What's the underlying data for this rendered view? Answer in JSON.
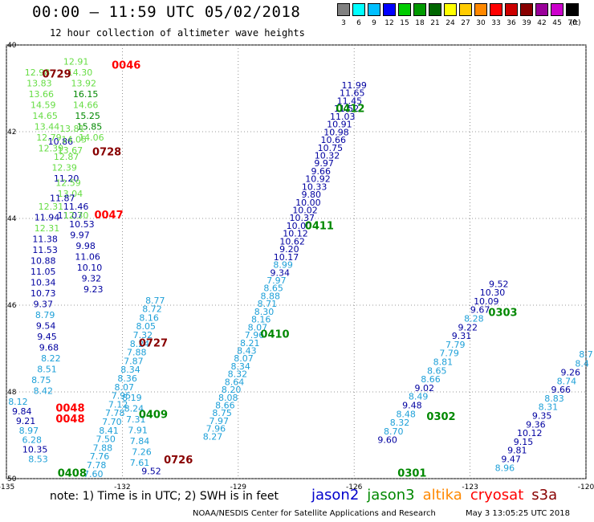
{
  "header": {
    "title": "00:00 – 11:59 UTC 05/02/2018",
    "subtitle": "12 hour collection of altimeter wave heights"
  },
  "color_scale": {
    "unit": "(ft)",
    "bins": [
      {
        "label": "3",
        "color": "#808080"
      },
      {
        "label": "6",
        "color": "#00ffff"
      },
      {
        "label": "9",
        "color": "#00bfff"
      },
      {
        "label": "12",
        "color": "#0000ff"
      },
      {
        "label": "15",
        "color": "#00cc00"
      },
      {
        "label": "18",
        "color": "#009900"
      },
      {
        "label": "21",
        "color": "#006600"
      },
      {
        "label": "24",
        "color": "#ffff00"
      },
      {
        "label": "27",
        "color": "#ffcc00"
      },
      {
        "label": "30",
        "color": "#ff8800"
      },
      {
        "label": "33",
        "color": "#ff0000"
      },
      {
        "label": "36",
        "color": "#cc0000"
      },
      {
        "label": "39",
        "color": "#880000"
      },
      {
        "label": "42",
        "color": "#990099"
      },
      {
        "label": "45",
        "color": "#cc00cc"
      },
      {
        "label": "70",
        "color": "#000000"
      }
    ]
  },
  "chart_data": {
    "type": "scatter",
    "title": "00:00 – 11:59 UTC 05/02/2018",
    "subtitle": "12 hour collection of altimeter wave heights",
    "xlim": [
      -135,
      -120
    ],
    "ylim": [
      50,
      40
    ],
    "x_ticks": [
      {
        "value": -135,
        "label": "-135"
      },
      {
        "value": -132,
        "label": "-132"
      },
      {
        "value": -129,
        "label": "-129"
      },
      {
        "value": -126,
        "label": "-126"
      },
      {
        "value": -123,
        "label": "-123"
      },
      {
        "value": -120,
        "label": "-120"
      }
    ],
    "y_ticks": [
      {
        "value": 40,
        "label": "40"
      },
      {
        "value": 42,
        "label": "42"
      },
      {
        "value": 44,
        "label": "44"
      },
      {
        "value": 46,
        "label": "46"
      },
      {
        "value": 48,
        "label": "48"
      },
      {
        "value": 50,
        "label": "50"
      }
    ],
    "grid": "dotted",
    "series": [
      {
        "name": "jason2",
        "color": "#00008b"
      },
      {
        "name": "jason3",
        "color": "#008000"
      },
      {
        "name": "altika",
        "color": "#ff8c00"
      },
      {
        "name": "cryosat",
        "color": "#cc0000"
      },
      {
        "name": "s3a",
        "color": "#7a0000"
      }
    ],
    "color_by_height": [
      {
        "max": 9,
        "color": "#1ea0d8"
      },
      {
        "max": 12,
        "color": "#0000a0"
      },
      {
        "max": 15,
        "color": "#66dd44"
      },
      {
        "max": 18,
        "color": "#008800"
      }
    ],
    "points": [
      {
        "x": -126.0,
        "y": 41.0,
        "v": "11.99"
      },
      {
        "x": -126.05,
        "y": 41.18,
        "v": "11.65"
      },
      {
        "x": -126.12,
        "y": 41.36,
        "v": "11.45"
      },
      {
        "x": -126.2,
        "y": 41.54,
        "v": "11.52"
      },
      {
        "x": -126.3,
        "y": 41.72,
        "v": "11.03"
      },
      {
        "x": -126.38,
        "y": 41.9,
        "v": "10.91"
      },
      {
        "x": -126.46,
        "y": 42.08,
        "v": "10.98"
      },
      {
        "x": -126.54,
        "y": 42.26,
        "v": "10.66"
      },
      {
        "x": -126.62,
        "y": 42.44,
        "v": "10.75"
      },
      {
        "x": -126.7,
        "y": 42.62,
        "v": "10.32"
      },
      {
        "x": -126.78,
        "y": 42.8,
        "v": "9.97"
      },
      {
        "x": -126.86,
        "y": 42.98,
        "v": "9.66"
      },
      {
        "x": -126.94,
        "y": 43.16,
        "v": "10.92"
      },
      {
        "x": -127.03,
        "y": 43.34,
        "v": "10.33"
      },
      {
        "x": -127.11,
        "y": 43.52,
        "v": "9.80"
      },
      {
        "x": -127.19,
        "y": 43.7,
        "v": "10.00"
      },
      {
        "x": -127.27,
        "y": 43.88,
        "v": "10.02"
      },
      {
        "x": -127.35,
        "y": 44.06,
        "v": "10.37"
      },
      {
        "x": -127.43,
        "y": 44.24,
        "v": "10.00"
      },
      {
        "x": -127.52,
        "y": 44.42,
        "v": "10.12"
      },
      {
        "x": -127.6,
        "y": 44.6,
        "v": "10.62"
      },
      {
        "x": -127.68,
        "y": 44.78,
        "v": "9.20"
      },
      {
        "x": -127.76,
        "y": 44.96,
        "v": "10.17"
      },
      {
        "x": -127.84,
        "y": 45.14,
        "v": "8.99"
      },
      {
        "x": -127.92,
        "y": 45.32,
        "v": "9.34"
      },
      {
        "x": -128.01,
        "y": 45.5,
        "v": "7.97"
      },
      {
        "x": -128.09,
        "y": 45.68,
        "v": "8.65"
      },
      {
        "x": -128.17,
        "y": 45.86,
        "v": "8.88"
      },
      {
        "x": -128.25,
        "y": 46.04,
        "v": "8.71"
      },
      {
        "x": -128.33,
        "y": 46.22,
        "v": "8.30"
      },
      {
        "x": -128.41,
        "y": 46.4,
        "v": "8.16"
      },
      {
        "x": -128.5,
        "y": 46.58,
        "v": "8.07"
      },
      {
        "x": -128.58,
        "y": 46.76,
        "v": "7.96"
      },
      {
        "x": -128.7,
        "y": 46.94,
        "v": "8.21"
      },
      {
        "x": -128.78,
        "y": 47.12,
        "v": "8.43"
      },
      {
        "x": -128.86,
        "y": 47.3,
        "v": "8.07"
      },
      {
        "x": -128.94,
        "y": 47.48,
        "v": "8.34"
      },
      {
        "x": -129.02,
        "y": 47.66,
        "v": "8.32"
      },
      {
        "x": -129.1,
        "y": 47.84,
        "v": "8.64"
      },
      {
        "x": -129.18,
        "y": 48.02,
        "v": "8.20"
      },
      {
        "x": -129.26,
        "y": 48.2,
        "v": "8.08"
      },
      {
        "x": -129.34,
        "y": 48.38,
        "v": "8.66"
      },
      {
        "x": -129.42,
        "y": 48.56,
        "v": "8.75"
      },
      {
        "x": -129.5,
        "y": 48.74,
        "v": "7.97"
      },
      {
        "x": -129.58,
        "y": 48.92,
        "v": "7.96"
      },
      {
        "x": -129.66,
        "y": 49.1,
        "v": "8.27"
      },
      {
        "x": -131.15,
        "y": 45.96,
        "v": "8.77"
      },
      {
        "x": -131.23,
        "y": 46.16,
        "v": "8.72"
      },
      {
        "x": -131.31,
        "y": 46.36,
        "v": "8.16"
      },
      {
        "x": -131.39,
        "y": 46.56,
        "v": "8.05"
      },
      {
        "x": -131.47,
        "y": 46.76,
        "v": "7.32"
      },
      {
        "x": -131.55,
        "y": 46.96,
        "v": "8.24"
      },
      {
        "x": -131.63,
        "y": 47.16,
        "v": "7.88"
      },
      {
        "x": -131.71,
        "y": 47.36,
        "v": "7.87"
      },
      {
        "x": -131.79,
        "y": 47.56,
        "v": "8.34"
      },
      {
        "x": -131.87,
        "y": 47.76,
        "v": "8.36"
      },
      {
        "x": -131.95,
        "y": 47.96,
        "v": "8.07"
      },
      {
        "x": -132.03,
        "y": 48.16,
        "v": "7.95"
      },
      {
        "x": -132.11,
        "y": 48.36,
        "v": "7.12"
      },
      {
        "x": -132.19,
        "y": 48.56,
        "v": "7.78"
      },
      {
        "x": -132.27,
        "y": 48.76,
        "v": "7.70"
      },
      {
        "x": -132.35,
        "y": 48.96,
        "v": "8.41"
      },
      {
        "x": -132.43,
        "y": 49.16,
        "v": "7.50"
      },
      {
        "x": -132.51,
        "y": 49.36,
        "v": "7.88"
      },
      {
        "x": -132.59,
        "y": 49.56,
        "v": "7.76"
      },
      {
        "x": -132.67,
        "y": 49.76,
        "v": "7.78"
      },
      {
        "x": -132.75,
        "y": 49.96,
        "v": "7.60"
      },
      {
        "x": -131.25,
        "y": 49.9,
        "v": "9.52"
      },
      {
        "x": -131.55,
        "y": 49.7,
        "v": "7.61"
      },
      {
        "x": -131.5,
        "y": 49.45,
        "v": "7.26"
      },
      {
        "x": -131.55,
        "y": 49.2,
        "v": "7.84"
      },
      {
        "x": -131.6,
        "y": 48.95,
        "v": "7.91"
      },
      {
        "x": -131.65,
        "y": 48.7,
        "v": "7.31"
      },
      {
        "x": -131.7,
        "y": 48.45,
        "v": "8.24"
      },
      {
        "x": -131.75,
        "y": 48.2,
        "v": "8.19"
      },
      {
        "x": -134.7,
        "y": 48.3,
        "v": "8.12"
      },
      {
        "x": -134.6,
        "y": 48.52,
        "v": "9.84"
      },
      {
        "x": -134.5,
        "y": 48.74,
        "v": "9.21"
      },
      {
        "x": -134.42,
        "y": 48.96,
        "v": "8.97"
      },
      {
        "x": -134.34,
        "y": 49.18,
        "v": "6.28"
      },
      {
        "x": -134.26,
        "y": 49.4,
        "v": "10.35"
      },
      {
        "x": -134.18,
        "y": 49.62,
        "v": "8.53"
      },
      {
        "x": -134.1,
        "y": 47.8,
        "v": "8.75"
      },
      {
        "x": -134.05,
        "y": 48.05,
        "v": "8.42"
      },
      {
        "x": -133.95,
        "y": 47.55,
        "v": "8.51"
      },
      {
        "x": -133.85,
        "y": 47.3,
        "v": "8.22"
      },
      {
        "x": -133.9,
        "y": 47.05,
        "v": "9.68"
      },
      {
        "x": -133.95,
        "y": 46.8,
        "v": "9.45"
      },
      {
        "x": -133.98,
        "y": 46.55,
        "v": "9.54"
      },
      {
        "x": -134.0,
        "y": 46.3,
        "v": "8.79"
      },
      {
        "x": -134.05,
        "y": 46.05,
        "v": "9.37"
      },
      {
        "x": -134.05,
        "y": 45.8,
        "v": "10.73"
      },
      {
        "x": -134.05,
        "y": 45.55,
        "v": "10.34"
      },
      {
        "x": -134.05,
        "y": 45.3,
        "v": "11.05"
      },
      {
        "x": -134.05,
        "y": 45.05,
        "v": "10.88"
      },
      {
        "x": -134.0,
        "y": 44.8,
        "v": "11.53"
      },
      {
        "x": -134.0,
        "y": 44.55,
        "v": "11.38"
      },
      {
        "x": -133.95,
        "y": 44.3,
        "v": "12.31"
      },
      {
        "x": -133.95,
        "y": 44.05,
        "v": "11.94"
      },
      {
        "x": -133.85,
        "y": 43.8,
        "v": "12.31"
      },
      {
        "x": -133.05,
        "y": 44.2,
        "v": "10.53"
      },
      {
        "x": -133.1,
        "y": 44.45,
        "v": "9.97"
      },
      {
        "x": -132.95,
        "y": 44.7,
        "v": "9.98"
      },
      {
        "x": -132.9,
        "y": 44.95,
        "v": "11.06"
      },
      {
        "x": -132.85,
        "y": 45.2,
        "v": "10.10"
      },
      {
        "x": -132.8,
        "y": 45.45,
        "v": "9.32"
      },
      {
        "x": -132.75,
        "y": 45.7,
        "v": "9.23"
      },
      {
        "x": -133.6,
        "y": 42.3,
        "v": "10.86"
      },
      {
        "x": -133.45,
        "y": 43.15,
        "v": "11.20"
      },
      {
        "x": -133.2,
        "y": 43.8,
        "v": "11.46"
      },
      {
        "x": -133.35,
        "y": 44.0,
        "v": "11.07"
      },
      {
        "x": -134.2,
        "y": 40.7,
        "v": "12.98"
      },
      {
        "x": -134.15,
        "y": 40.95,
        "v": "13.83"
      },
      {
        "x": -134.1,
        "y": 41.2,
        "v": "13.66"
      },
      {
        "x": -134.05,
        "y": 41.45,
        "v": "14.59"
      },
      {
        "x": -134.0,
        "y": 41.7,
        "v": "14.65"
      },
      {
        "x": -133.95,
        "y": 41.95,
        "v": "13.44"
      },
      {
        "x": -133.9,
        "y": 42.2,
        "v": "12.79"
      },
      {
        "x": -133.85,
        "y": 42.45,
        "v": "12.39"
      },
      {
        "x": -133.45,
        "y": 42.65,
        "v": "12.87"
      },
      {
        "x": -133.5,
        "y": 42.9,
        "v": "12.39"
      },
      {
        "x": -133.35,
        "y": 43.5,
        "v": "13.04"
      },
      {
        "x": -133.55,
        "y": 43.6,
        "v": "11.87"
      },
      {
        "x": -133.2,
        "y": 44.0,
        "v": "12.30"
      },
      {
        "x": -133.4,
        "y": 43.25,
        "v": "12.59"
      },
      {
        "x": -133.3,
        "y": 42.0,
        "v": "13.81"
      },
      {
        "x": -133.25,
        "y": 42.25,
        "v": "14.05"
      },
      {
        "x": -133.35,
        "y": 42.5,
        "v": "13.67"
      },
      {
        "x": -133.2,
        "y": 40.45,
        "v": "12.91"
      },
      {
        "x": -133.1,
        "y": 40.7,
        "v": "14.30"
      },
      {
        "x": -133.0,
        "y": 40.95,
        "v": "13.92"
      },
      {
        "x": -132.95,
        "y": 41.2,
        "v": "16.15"
      },
      {
        "x": -132.95,
        "y": 41.45,
        "v": "14.66"
      },
      {
        "x": -132.9,
        "y": 41.7,
        "v": "15.25"
      },
      {
        "x": -132.85,
        "y": 41.95,
        "v": "15.85"
      },
      {
        "x": -132.8,
        "y": 42.2,
        "v": "14.06"
      },
      {
        "x": -120.0,
        "y": 47.2,
        "v": "8.7"
      },
      {
        "x": -120.1,
        "y": 47.42,
        "v": "8.4"
      },
      {
        "x": -120.4,
        "y": 47.62,
        "v": "9.26"
      },
      {
        "x": -120.5,
        "y": 47.82,
        "v": "8.74"
      },
      {
        "x": -120.65,
        "y": 48.02,
        "v": "9.66"
      },
      {
        "x": -120.82,
        "y": 48.22,
        "v": "8.83"
      },
      {
        "x": -120.98,
        "y": 48.42,
        "v": "8.31"
      },
      {
        "x": -121.14,
        "y": 48.62,
        "v": "9.35"
      },
      {
        "x": -121.3,
        "y": 48.82,
        "v": "9.36"
      },
      {
        "x": -121.46,
        "y": 49.02,
        "v": "10.12"
      },
      {
        "x": -121.62,
        "y": 49.22,
        "v": "9.15"
      },
      {
        "x": -121.78,
        "y": 49.42,
        "v": "9.81"
      },
      {
        "x": -121.94,
        "y": 49.62,
        "v": "9.47"
      },
      {
        "x": -122.1,
        "y": 49.82,
        "v": "8.96"
      },
      {
        "x": -122.26,
        "y": 45.58,
        "v": "9.52"
      },
      {
        "x": -122.42,
        "y": 45.78,
        "v": "10.30"
      },
      {
        "x": -122.58,
        "y": 45.98,
        "v": "10.09"
      },
      {
        "x": -122.74,
        "y": 46.18,
        "v": "9.67"
      },
      {
        "x": -122.9,
        "y": 46.38,
        "v": "8.28"
      },
      {
        "x": -123.06,
        "y": 46.58,
        "v": "9.22"
      },
      {
        "x": -123.22,
        "y": 46.78,
        "v": "9.31"
      },
      {
        "x": -123.38,
        "y": 46.98,
        "v": "7.79"
      },
      {
        "x": -123.54,
        "y": 47.18,
        "v": "7.79"
      },
      {
        "x": -123.7,
        "y": 47.38,
        "v": "8.81"
      },
      {
        "x": -123.86,
        "y": 47.58,
        "v": "8.65"
      },
      {
        "x": -124.02,
        "y": 47.78,
        "v": "8.66"
      },
      {
        "x": -124.18,
        "y": 47.98,
        "v": "9.02"
      },
      {
        "x": -124.34,
        "y": 48.18,
        "v": "8.49"
      },
      {
        "x": -124.5,
        "y": 48.38,
        "v": "9.48"
      },
      {
        "x": -124.66,
        "y": 48.58,
        "v": "8.48"
      },
      {
        "x": -124.82,
        "y": 48.78,
        "v": "8.32"
      },
      {
        "x": -124.98,
        "y": 48.98,
        "v": "8.70"
      },
      {
        "x": -125.14,
        "y": 49.18,
        "v": "9.60"
      }
    ],
    "time_labels": [
      {
        "x": -131.9,
        "y": 40.55,
        "t": "0046",
        "sat": "cryosat"
      },
      {
        "x": -133.7,
        "y": 40.75,
        "t": "0729",
        "sat": "s3a"
      },
      {
        "x": -126.1,
        "y": 41.55,
        "t": "0412",
        "sat": "jason3"
      },
      {
        "x": -132.4,
        "y": 42.55,
        "t": "0728",
        "sat": "s3a"
      },
      {
        "x": -126.9,
        "y": 44.25,
        "t": "0411",
        "sat": "jason3"
      },
      {
        "x": -132.35,
        "y": 44.0,
        "t": "0047",
        "sat": "cryosat"
      },
      {
        "x": -128.05,
        "y": 46.75,
        "t": "0410",
        "sat": "jason3"
      },
      {
        "x": -131.2,
        "y": 46.95,
        "t": "0727",
        "sat": "s3a"
      },
      {
        "x": -133.35,
        "y": 48.45,
        "t": "0048",
        "sat": "cryosat"
      },
      {
        "x": -133.35,
        "y": 48.7,
        "t": "0048",
        "sat": "cryosat"
      },
      {
        "x": -131.2,
        "y": 48.6,
        "t": "0409",
        "sat": "jason3"
      },
      {
        "x": -130.55,
        "y": 49.65,
        "t": "0726",
        "sat": "s3a"
      },
      {
        "x": -133.3,
        "y": 49.95,
        "t": "0408",
        "sat": "jason3"
      },
      {
        "x": -122.15,
        "y": 46.25,
        "t": "0303",
        "sat": "jason3"
      },
      {
        "x": -123.75,
        "y": 48.65,
        "t": "0302",
        "sat": "jason3"
      },
      {
        "x": -124.5,
        "y": 49.95,
        "t": "0301",
        "sat": "jason3"
      }
    ]
  },
  "footer": {
    "note": "note:  1) Time is in UTC; 2) SWH is in feet",
    "credit": "NOAA/NESDIS Center for Satellite Applications and Research",
    "timestamp": "May  3 13:05:25 UTC 2018",
    "legend": [
      {
        "label": "jason2",
        "color": "#0000cc"
      },
      {
        "label": "jason3",
        "color": "#008800"
      },
      {
        "label": "altika",
        "color": "#ff8800"
      },
      {
        "label": "cryosat",
        "color": "#ff0000"
      },
      {
        "label": "s3a",
        "color": "#880000"
      }
    ]
  }
}
